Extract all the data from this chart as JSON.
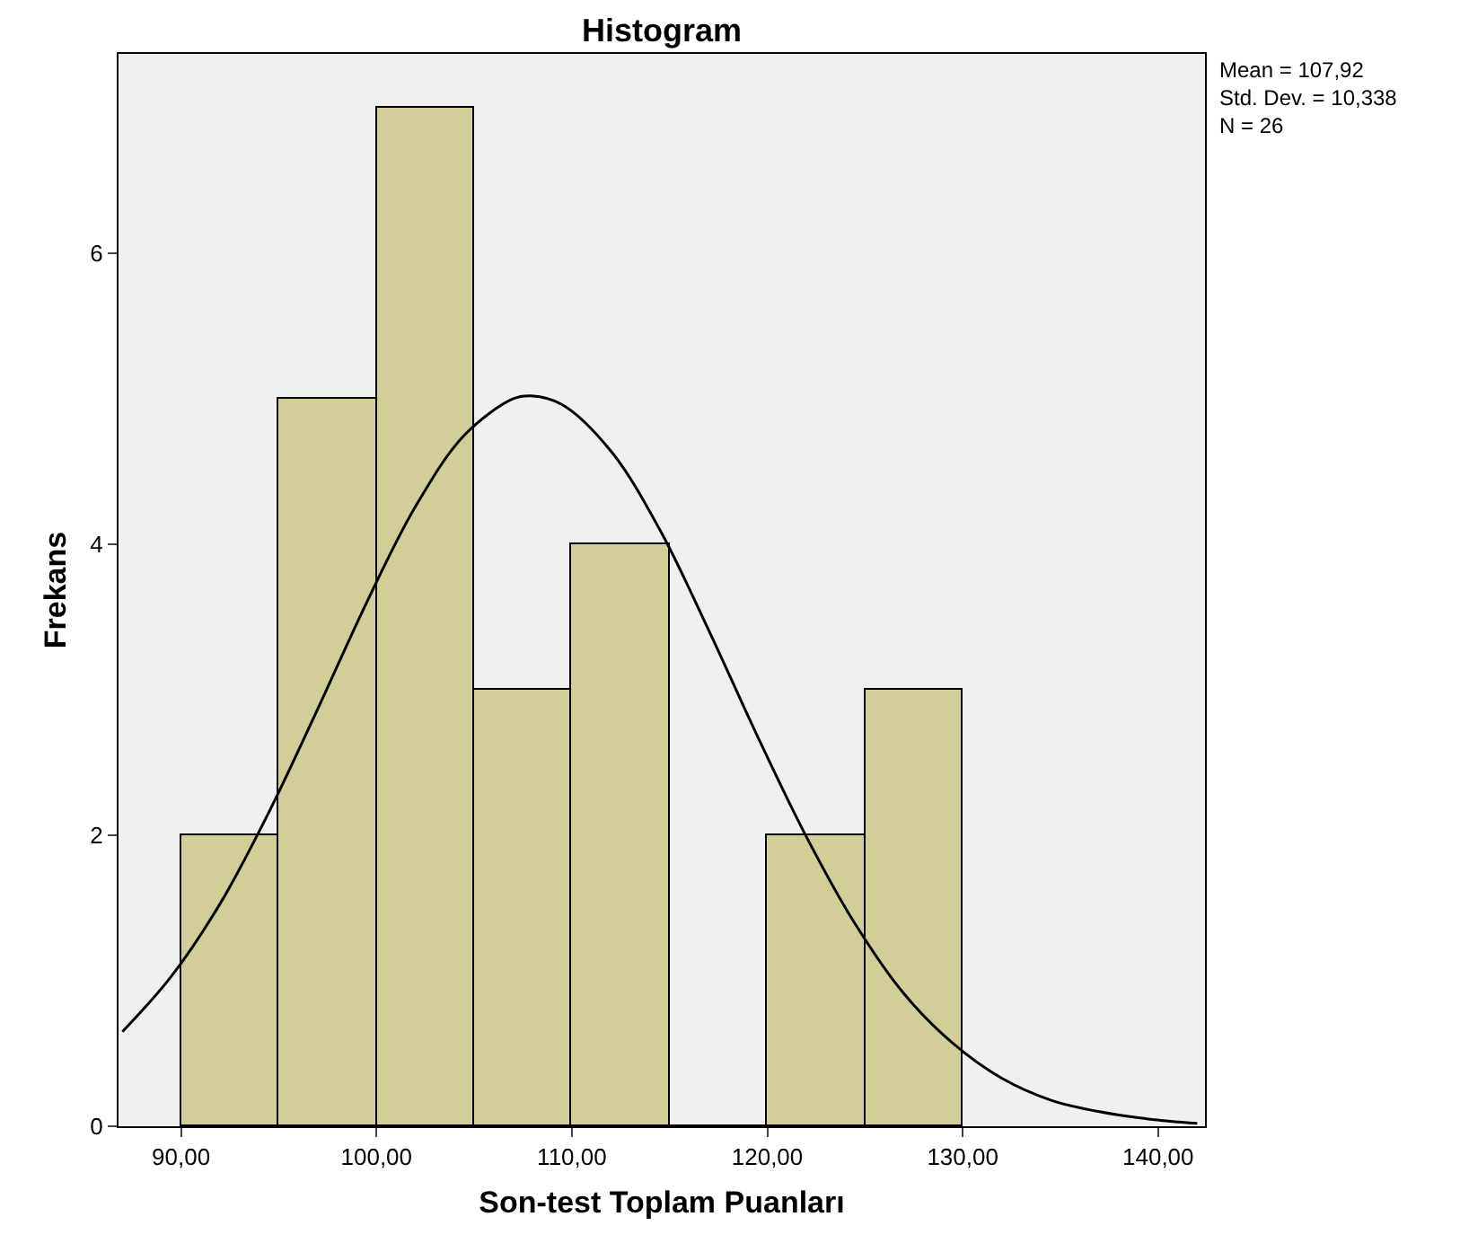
{
  "chart_data": {
    "type": "histogram",
    "title": "Histogram",
    "xlabel": "Son-test Toplam Puanları",
    "ylabel": "Frekans",
    "bins": [
      90,
      95,
      100,
      105,
      110,
      115,
      120,
      125,
      130
    ],
    "values": [
      2,
      5,
      7,
      3,
      4,
      0,
      2,
      3
    ],
    "color": "#d3ce97",
    "series": [
      {
        "type": "line",
        "color": "#000000",
        "x": [
          87,
          89.5,
          92,
          94.5,
          97,
          99.5,
          102,
          104.5,
          107,
          107.92,
          109.5,
          112,
          114.5,
          117,
          119.5,
          122,
          124.5,
          127,
          129.5,
          132,
          134.5,
          137,
          139.5,
          142
        ],
        "values": [
          0.65,
          1.03,
          1.53,
          2.16,
          2.87,
          3.6,
          4.26,
          4.75,
          5,
          5.02,
          4.96,
          4.64,
          4.1,
          3.41,
          2.68,
          1.99,
          1.39,
          0.91,
          0.57,
          0.33,
          0.18,
          0.1,
          0.05,
          0.02
        ]
      }
    ],
    "xlim": [
      86.8,
      142.4
    ],
    "ylim": [
      0,
      7.37
    ],
    "xticks": [
      {
        "value": 90,
        "label": "90,00"
      },
      {
        "value": 100,
        "label": "100,00"
      },
      {
        "value": 110,
        "label": "110,00"
      },
      {
        "value": 120,
        "label": "120,00"
      },
      {
        "value": 130,
        "label": "130,00"
      },
      {
        "value": 140,
        "label": "140,00"
      }
    ],
    "yticks": [
      0,
      2,
      4,
      6
    ],
    "grid": false,
    "annotations": [
      "Mean = 107,92",
      "Std. Dev. = 10,338",
      "N = 26"
    ]
  }
}
